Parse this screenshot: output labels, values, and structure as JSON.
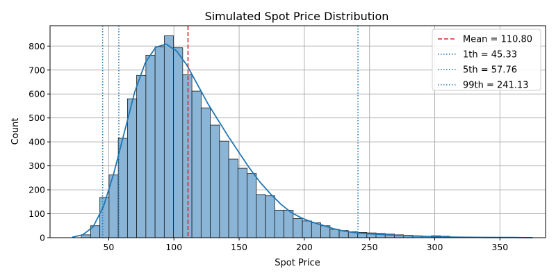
{
  "chart_data": {
    "type": "bar",
    "title": "Simulated Spot Price Distribution",
    "xlabel": "Spot Price",
    "ylabel": "Count",
    "xlim": [
      5,
      385
    ],
    "ylim": [
      0,
      885
    ],
    "grid": true,
    "legend_placement": "top-right",
    "x_ticks": [
      50,
      100,
      150,
      200,
      250,
      300,
      350
    ],
    "y_ticks": [
      0,
      100,
      200,
      300,
      400,
      500,
      600,
      700,
      800
    ],
    "histogram": {
      "bin_start": 22,
      "bin_width": 7.06,
      "counts": [
        0,
        12,
        50,
        168,
        262,
        415,
        580,
        678,
        762,
        797,
        843,
        793,
        680,
        612,
        542,
        470,
        403,
        328,
        290,
        268,
        180,
        175,
        115,
        115,
        80,
        70,
        62,
        50,
        35,
        30,
        25,
        22,
        20,
        18,
        15,
        12,
        10,
        8,
        6,
        8,
        6,
        3,
        3,
        2,
        2,
        2,
        1,
        1,
        1,
        1
      ],
      "fill": "#8ab5d6",
      "edge": "#1a1a1a"
    },
    "kde": {
      "name": "",
      "color": "#1f77b4",
      "x": [
        22,
        30,
        38,
        46,
        54,
        62,
        70,
        78,
        86,
        94,
        102,
        110,
        118,
        126,
        134,
        142,
        150,
        158,
        166,
        174,
        182,
        190,
        198,
        206,
        214,
        222,
        230,
        240,
        250,
        260,
        270,
        280,
        290,
        300,
        310,
        320,
        340,
        360,
        375
      ],
      "y": [
        2,
        12,
        45,
        130,
        270,
        440,
        610,
        730,
        795,
        808,
        780,
        720,
        640,
        560,
        490,
        420,
        355,
        290,
        232,
        183,
        140,
        105,
        82,
        65,
        52,
        38,
        28,
        20,
        16,
        13,
        10,
        8,
        6,
        4,
        3,
        2,
        1,
        1,
        0
      ]
    },
    "lines": [
      {
        "label": "Mean = 110.80",
        "x": 110.8,
        "color": "#d62728",
        "style": "dashed"
      },
      {
        "label": "1th = 45.33",
        "x": 45.33,
        "color": "#1f77b4",
        "style": "dotted"
      },
      {
        "label": "5th = 57.76",
        "x": 57.76,
        "color": "#1f77b4",
        "style": "dotted"
      },
      {
        "label": "99th = 241.13",
        "x": 241.13,
        "color": "#1f77b4",
        "style": "dotted"
      }
    ]
  }
}
